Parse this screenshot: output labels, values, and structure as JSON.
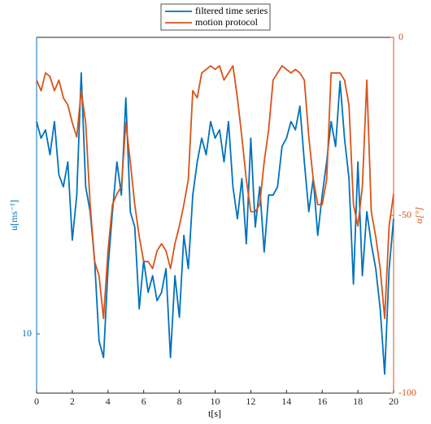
{
  "chart_data": {
    "type": "line",
    "xlabel": "t[s]",
    "ylabel": "u[ms⁻¹]",
    "y2label": "α[°]",
    "x": [
      0,
      0.25,
      0.5,
      0.75,
      1,
      1.25,
      1.5,
      1.75,
      2,
      2.25,
      2.5,
      2.75,
      3,
      3.25,
      3.5,
      3.75,
      4,
      4.25,
      4.5,
      4.75,
      5,
      5.25,
      5.5,
      5.75,
      6,
      6.25,
      6.5,
      6.75,
      7,
      7.25,
      7.5,
      7.75,
      8,
      8.25,
      8.5,
      8.75,
      9,
      9.25,
      9.5,
      9.75,
      10,
      10.25,
      10.5,
      10.75,
      11,
      11.25,
      11.5,
      11.75,
      12,
      12.25,
      12.5,
      12.75,
      13,
      13.25,
      13.5,
      13.75,
      14,
      14.25,
      14.5,
      14.75,
      15,
      15.25,
      15.5,
      15.75,
      16,
      16.25,
      16.5,
      16.75,
      17,
      17.25,
      17.5,
      17.75,
      18,
      18.25,
      18.5,
      18.75,
      19,
      19.25,
      19.5,
      19.75,
      20
    ],
    "series": [
      {
        "name": "filtered time series",
        "color": "#0072bd",
        "axis": "y",
        "values": [
          11.79,
          11.65,
          11.72,
          11.51,
          11.79,
          11.34,
          11.24,
          11.45,
          10.79,
          11.17,
          12.2,
          11.24,
          11.03,
          10.62,
          9.94,
          9.8,
          10.55,
          11.03,
          11.45,
          11.17,
          11.99,
          11.03,
          10.9,
          10.21,
          10.62,
          10.35,
          10.49,
          10.28,
          10.35,
          10.55,
          9.8,
          10.49,
          10.14,
          10.83,
          10.55,
          11.17,
          11.45,
          11.65,
          11.51,
          11.79,
          11.65,
          11.72,
          11.45,
          11.79,
          11.24,
          10.97,
          11.31,
          10.76,
          11.65,
          10.9,
          11.24,
          10.69,
          11.17,
          11.17,
          11.24,
          11.58,
          11.65,
          11.79,
          11.72,
          11.92,
          11.45,
          11.03,
          11.31,
          10.83,
          11.17,
          11.45,
          11.79,
          11.58,
          12.13,
          11.65,
          11.31,
          10.42,
          11.45,
          10.49,
          11.03,
          10.76,
          10.55,
          10.21,
          9.66,
          10.55,
          10.97
        ]
      },
      {
        "name": "motion protocol",
        "color": "#d95319",
        "axis": "y2",
        "values": [
          -12,
          -15,
          -10,
          -11,
          -15,
          -12,
          -17,
          -19,
          -24,
          -28,
          -15,
          -24,
          -47,
          -63,
          -67,
          -79,
          -60,
          -47,
          -44,
          -42,
          -24,
          -35,
          -47,
          -56,
          -63,
          -63,
          -65,
          -60,
          -58,
          -60,
          -65,
          -58,
          -53,
          -47,
          -40,
          -15,
          -17,
          -10,
          -9,
          -8,
          -9,
          -8,
          -12,
          -10,
          -8,
          -17,
          -28,
          -40,
          -49,
          -49,
          -47,
          -35,
          -26,
          -12,
          -10,
          -8,
          -9,
          -10,
          -9,
          -10,
          -12,
          -28,
          -40,
          -47,
          -47,
          -40,
          -10,
          -10,
          -10,
          -12,
          -19,
          -47,
          -53,
          -42,
          -12,
          -49,
          -56,
          -65,
          -79,
          -53,
          -44
        ]
      }
    ],
    "xlim": [
      0,
      20
    ],
    "xticks": [
      0,
      2,
      4,
      6,
      8,
      10,
      12,
      14,
      16,
      18,
      20
    ],
    "ylim": [
      9.5,
      12.5
    ],
    "yticks": [
      10
    ],
    "y2lim": [
      -100,
      0
    ],
    "y2ticks": [
      -100,
      -50,
      0
    ],
    "legend": "top"
  }
}
